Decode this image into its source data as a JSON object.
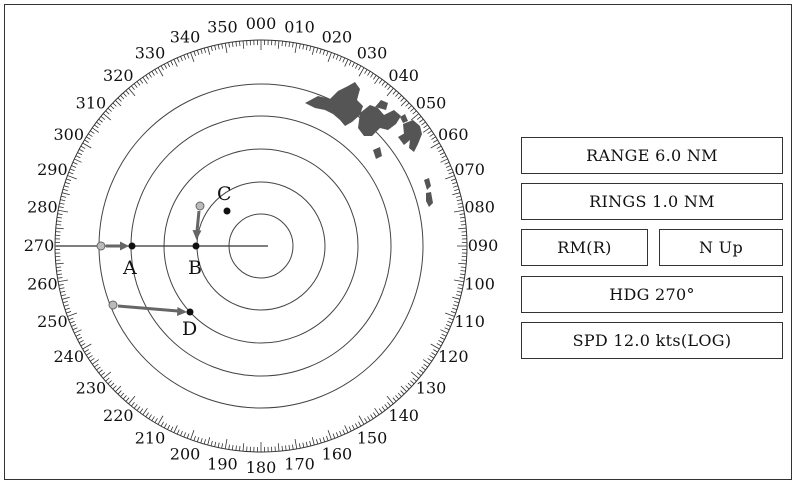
{
  "bearing_labels": [
    "000",
    "010",
    "020",
    "030",
    "040",
    "050",
    "060",
    "070",
    "080",
    "090",
    "100",
    "110",
    "120",
    "130",
    "140",
    "150",
    "160",
    "170",
    "180",
    "190",
    "200",
    "210",
    "220",
    "230",
    "240",
    "250",
    "260",
    "270",
    "280",
    "290",
    "300",
    "310",
    "320",
    "330",
    "340",
    "350"
  ],
  "targets": [
    {
      "id": "A",
      "label": "A"
    },
    {
      "id": "B",
      "label": "B"
    },
    {
      "id": "C",
      "label": "C"
    },
    {
      "id": "D",
      "label": "D"
    }
  ],
  "info_panel": {
    "range": "RANGE  6.0 NM",
    "rings": "RINGS  1.0 NM",
    "motion_mode": "RM(R)",
    "orientation": "N  Up",
    "heading": "HDG  270°",
    "speed": "SPD  12.0 kts(LOG)"
  },
  "colors": {
    "landmass": "#555555",
    "echo_trail": "#999999",
    "vector": "#666666",
    "line": "#333333"
  }
}
